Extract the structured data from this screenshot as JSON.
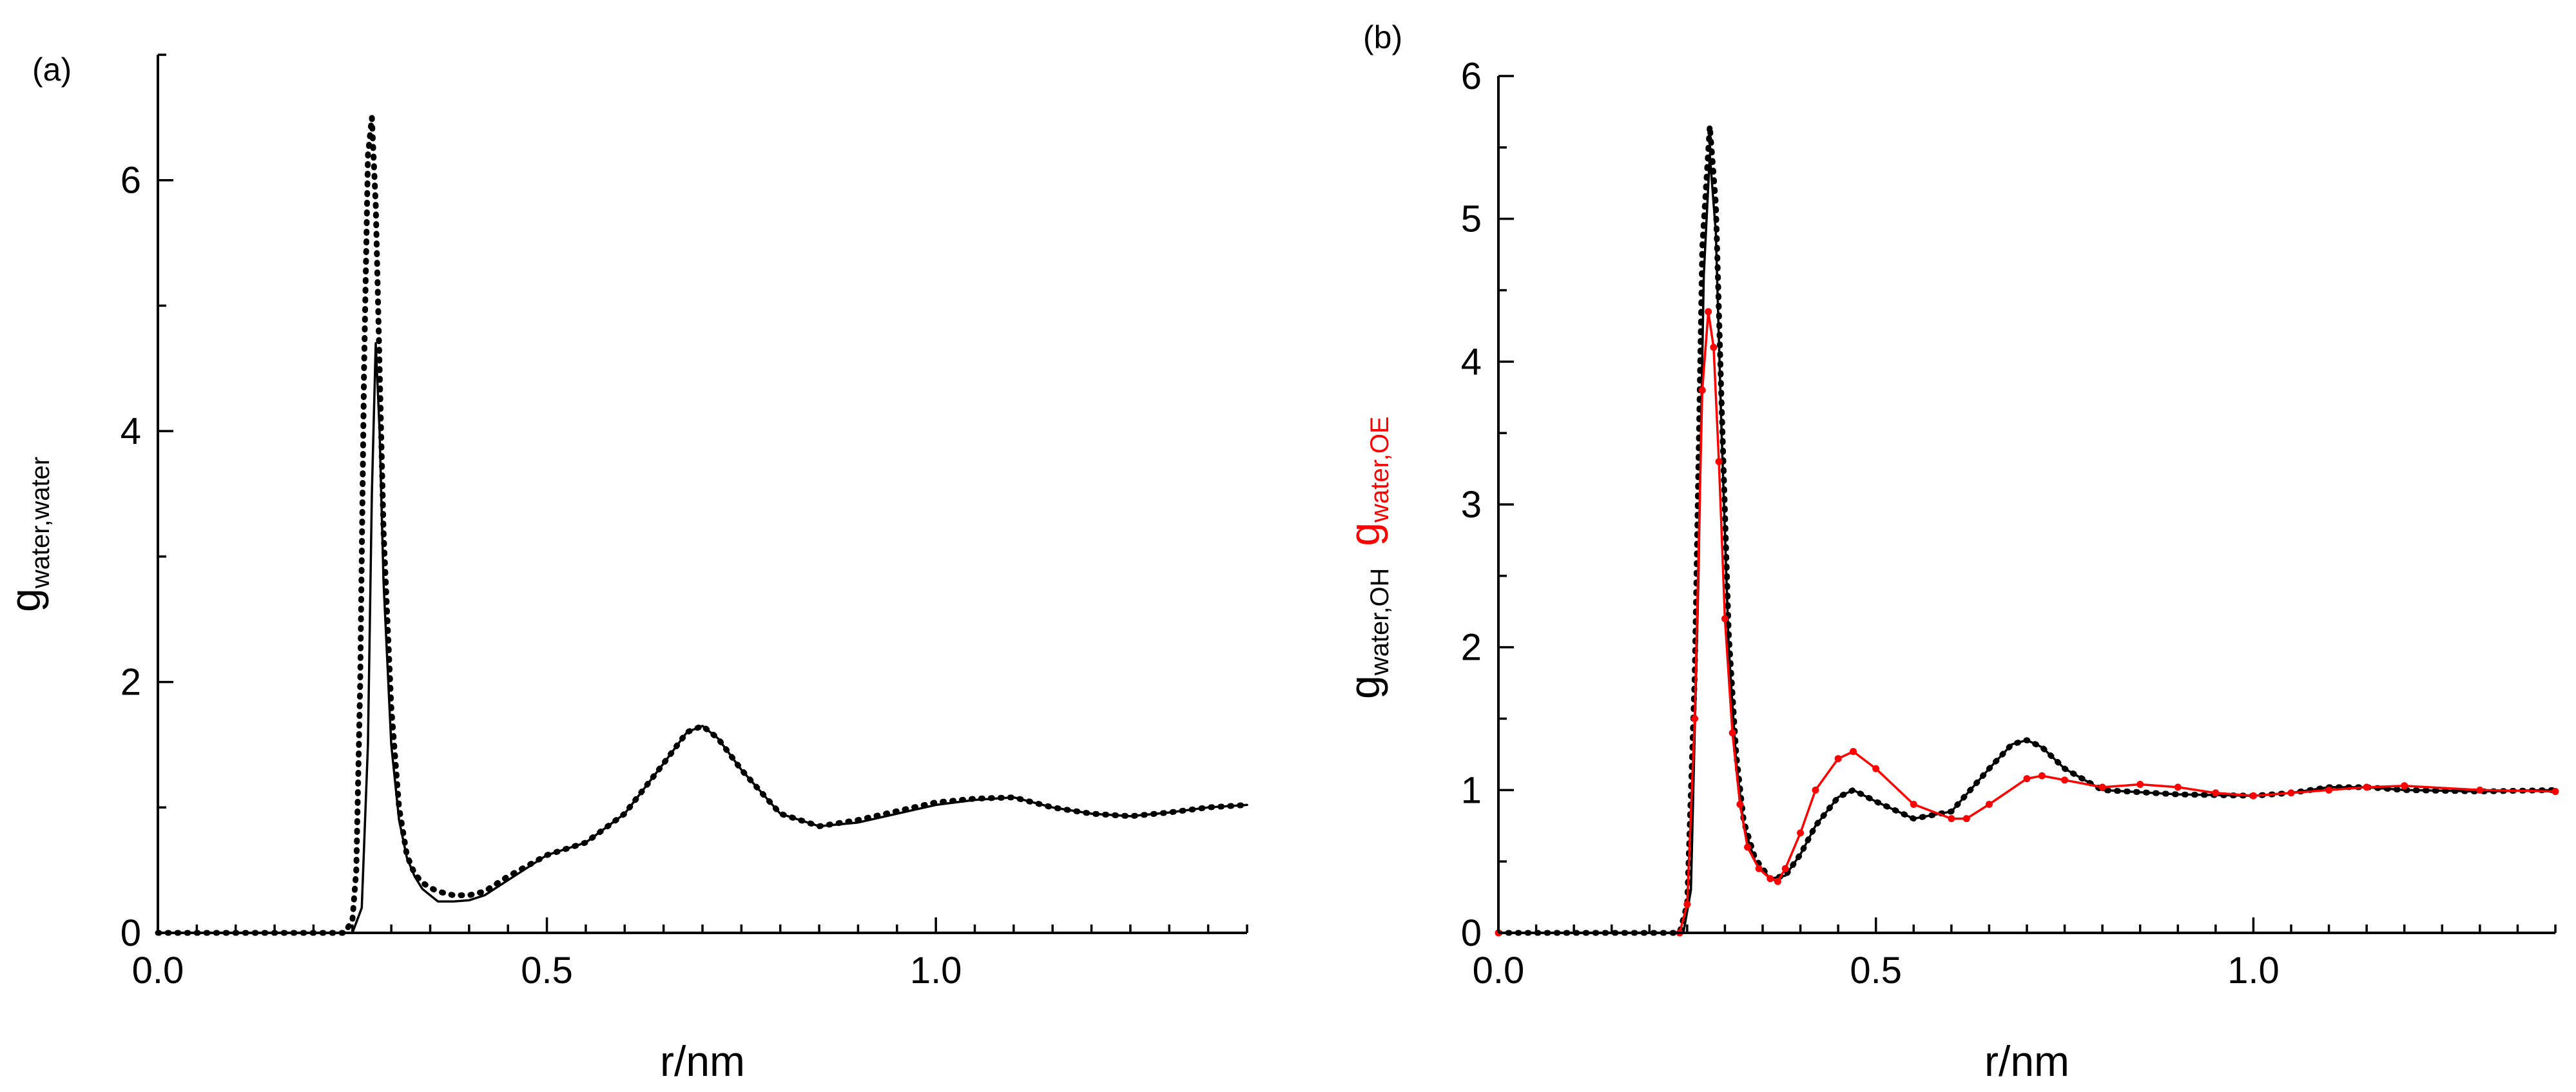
{
  "chart_data": [
    {
      "type": "line",
      "panel_label": "(a)",
      "xlabel": "r/nm",
      "ylabel": {
        "main": "g",
        "sub": "water,water"
      },
      "xlim": [
        0,
        1.4
      ],
      "ylim": [
        0,
        7
      ],
      "x_ticks": [
        0.0,
        0.5,
        1.0
      ],
      "x_tick_labels": [
        "0.0",
        "0.5",
        "1.0"
      ],
      "y_ticks": [
        0,
        2,
        4,
        6
      ],
      "y_tick_labels": [
        "0",
        "2",
        "4",
        "6"
      ],
      "grid": false,
      "series": [
        {
          "style": "solid",
          "color": "#000000",
          "x": [
            0.0,
            0.25,
            0.262,
            0.27,
            0.275,
            0.28,
            0.285,
            0.29,
            0.3,
            0.31,
            0.32,
            0.33,
            0.34,
            0.35,
            0.36,
            0.38,
            0.4,
            0.42,
            0.45,
            0.5,
            0.55,
            0.6,
            0.65,
            0.68,
            0.7,
            0.72,
            0.75,
            0.8,
            0.85,
            0.9,
            0.95,
            1.0,
            1.05,
            1.1,
            1.15,
            1.2,
            1.25,
            1.3,
            1.35,
            1.4
          ],
          "y": [
            0.0,
            0.0,
            0.2,
            1.5,
            3.5,
            4.7,
            4.0,
            2.8,
            1.5,
            0.9,
            0.6,
            0.45,
            0.35,
            0.3,
            0.25,
            0.25,
            0.26,
            0.3,
            0.42,
            0.62,
            0.72,
            0.95,
            1.35,
            1.6,
            1.65,
            1.55,
            1.3,
            0.95,
            0.85,
            0.88,
            0.95,
            1.02,
            1.06,
            1.08,
            1.0,
            0.95,
            0.93,
            0.96,
            1.0,
            1.02
          ]
        },
        {
          "style": "dotted",
          "color": "#000000",
          "x": [
            0.0,
            0.24,
            0.25,
            0.255,
            0.26,
            0.265,
            0.27,
            0.275,
            0.28,
            0.285,
            0.29,
            0.3,
            0.31,
            0.32,
            0.33,
            0.34,
            0.35,
            0.36,
            0.38,
            0.4,
            0.42,
            0.45,
            0.5,
            0.55,
            0.6,
            0.65,
            0.68,
            0.7,
            0.72,
            0.75,
            0.8,
            0.85,
            0.9,
            0.95,
            1.0,
            1.05,
            1.1,
            1.15,
            1.2,
            1.25,
            1.3,
            1.35,
            1.4
          ],
          "y": [
            0.0,
            0.0,
            0.1,
            0.5,
            2.0,
            4.5,
            6.2,
            6.5,
            5.8,
            4.5,
            3.2,
            1.8,
            1.0,
            0.62,
            0.47,
            0.4,
            0.36,
            0.33,
            0.3,
            0.3,
            0.33,
            0.45,
            0.62,
            0.72,
            0.95,
            1.35,
            1.6,
            1.65,
            1.55,
            1.3,
            0.95,
            0.85,
            0.9,
            0.97,
            1.04,
            1.07,
            1.08,
            1.0,
            0.95,
            0.93,
            0.96,
            1.0,
            1.02
          ]
        }
      ]
    },
    {
      "type": "line",
      "panel_label": "(b)",
      "xlabel": "r/nm",
      "ylabel": [
        {
          "main": "g",
          "sub": "water,OH",
          "color": "#000000"
        },
        {
          "main": "g",
          "sub": "water,OE",
          "color": "#ff0000"
        }
      ],
      "xlim": [
        0,
        1.4
      ],
      "ylim": [
        0,
        6
      ],
      "x_ticks": [
        0.0,
        0.5,
        1.0
      ],
      "x_tick_labels": [
        "0.0",
        "0.5",
        "1.0"
      ],
      "y_ticks": [
        0,
        1,
        2,
        3,
        4,
        5,
        6
      ],
      "y_tick_labels": [
        "0",
        "1",
        "2",
        "3",
        "4",
        "5",
        "6"
      ],
      "grid": false,
      "series": [
        {
          "style": "solid",
          "color": "#000000",
          "x": [
            0.0,
            0.245,
            0.255,
            0.265,
            0.272,
            0.28,
            0.288,
            0.295,
            0.305,
            0.315,
            0.325,
            0.34,
            0.36,
            0.38,
            0.4,
            0.42,
            0.45,
            0.47,
            0.5,
            0.55,
            0.6,
            0.65,
            0.68,
            0.7,
            0.72,
            0.75,
            0.8,
            0.9,
            1.0,
            1.05,
            1.1,
            1.15,
            1.2,
            1.3,
            1.4
          ],
          "y": [
            0.0,
            0.0,
            0.3,
            2.5,
            4.6,
            5.45,
            4.9,
            3.6,
            2.0,
            1.2,
            0.75,
            0.5,
            0.38,
            0.4,
            0.55,
            0.75,
            0.95,
            1.0,
            0.92,
            0.8,
            0.85,
            1.15,
            1.32,
            1.35,
            1.3,
            1.15,
            1.0,
            0.97,
            0.96,
            0.98,
            1.02,
            1.02,
            1.0,
            0.99,
            1.0
          ]
        },
        {
          "style": "dotted",
          "color": "#000000",
          "x": [
            0.0,
            0.24,
            0.25,
            0.26,
            0.27,
            0.28,
            0.288,
            0.295,
            0.305,
            0.315,
            0.325,
            0.34,
            0.36,
            0.38,
            0.4,
            0.42,
            0.45,
            0.47,
            0.5,
            0.55,
            0.6,
            0.65,
            0.68,
            0.7,
            0.72,
            0.75,
            0.8,
            0.9,
            1.0,
            1.05,
            1.1,
            1.15,
            1.2,
            1.3,
            1.4
          ],
          "y": [
            0.0,
            0.0,
            0.2,
            1.8,
            4.8,
            5.65,
            5.1,
            3.8,
            2.1,
            1.25,
            0.78,
            0.52,
            0.38,
            0.4,
            0.55,
            0.75,
            0.95,
            1.0,
            0.92,
            0.8,
            0.85,
            1.15,
            1.32,
            1.35,
            1.3,
            1.15,
            1.0,
            0.97,
            0.96,
            0.98,
            1.02,
            1.02,
            1.0,
            0.99,
            1.0
          ]
        },
        {
          "style": "solid-with-dots",
          "color": "#ff0000",
          "x": [
            0.0,
            0.24,
            0.25,
            0.26,
            0.27,
            0.278,
            0.285,
            0.292,
            0.3,
            0.31,
            0.32,
            0.33,
            0.345,
            0.36,
            0.37,
            0.38,
            0.4,
            0.42,
            0.45,
            0.47,
            0.5,
            0.55,
            0.6,
            0.62,
            0.65,
            0.7,
            0.72,
            0.75,
            0.8,
            0.85,
            0.9,
            0.95,
            1.0,
            1.05,
            1.1,
            1.15,
            1.2,
            1.3,
            1.4
          ],
          "y": [
            0.0,
            0.0,
            0.2,
            1.5,
            3.8,
            4.35,
            4.1,
            3.3,
            2.2,
            1.4,
            0.9,
            0.6,
            0.45,
            0.38,
            0.36,
            0.45,
            0.7,
            1.0,
            1.22,
            1.27,
            1.15,
            0.9,
            0.8,
            0.8,
            0.9,
            1.08,
            1.1,
            1.07,
            1.02,
            1.04,
            1.02,
            0.98,
            0.96,
            0.98,
            1.0,
            1.02,
            1.03,
            1.0,
            0.99
          ]
        }
      ]
    }
  ]
}
